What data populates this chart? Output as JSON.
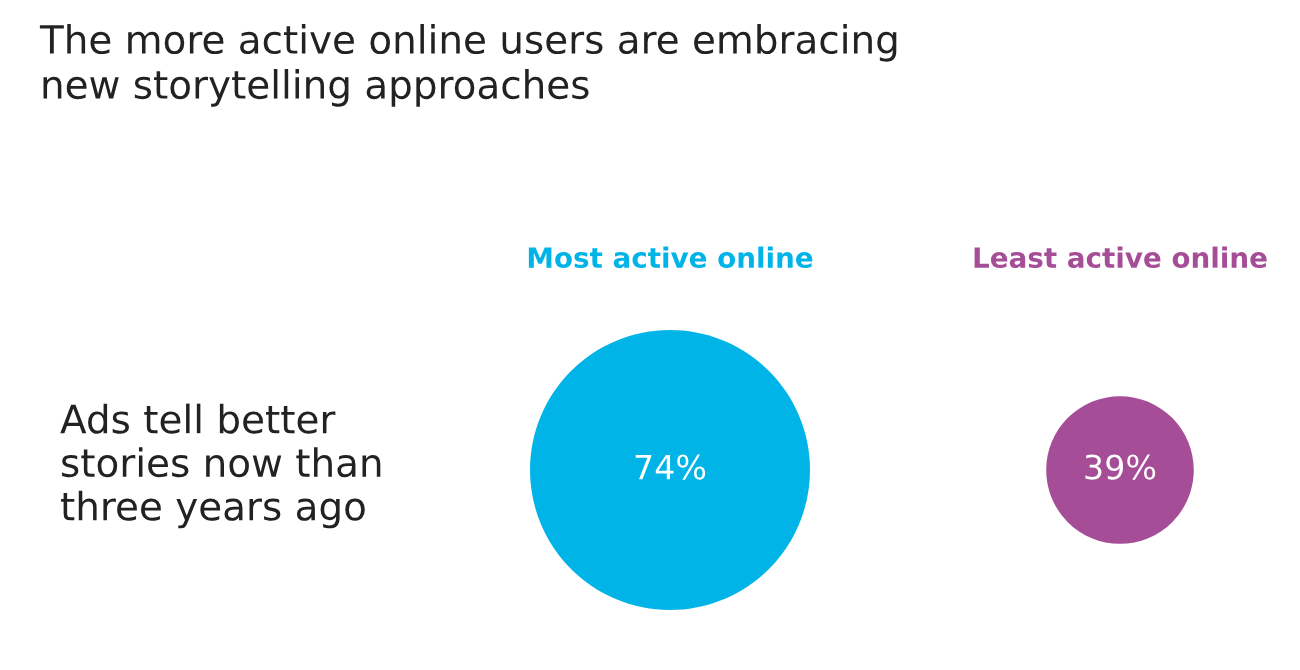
{
  "chart_data": {
    "type": "other",
    "title": "The more active online users are embracing\nnew storytelling approaches",
    "categories": [
      "Most active online",
      "Least active online"
    ],
    "values": [
      74,
      39
    ],
    "colors": [
      "#00b4e8",
      "#a64d97"
    ],
    "value_labels": [
      "74%",
      "39%"
    ],
    "annotations": [
      "Ads tell better\nstories now than\nthree years ago"
    ]
  }
}
